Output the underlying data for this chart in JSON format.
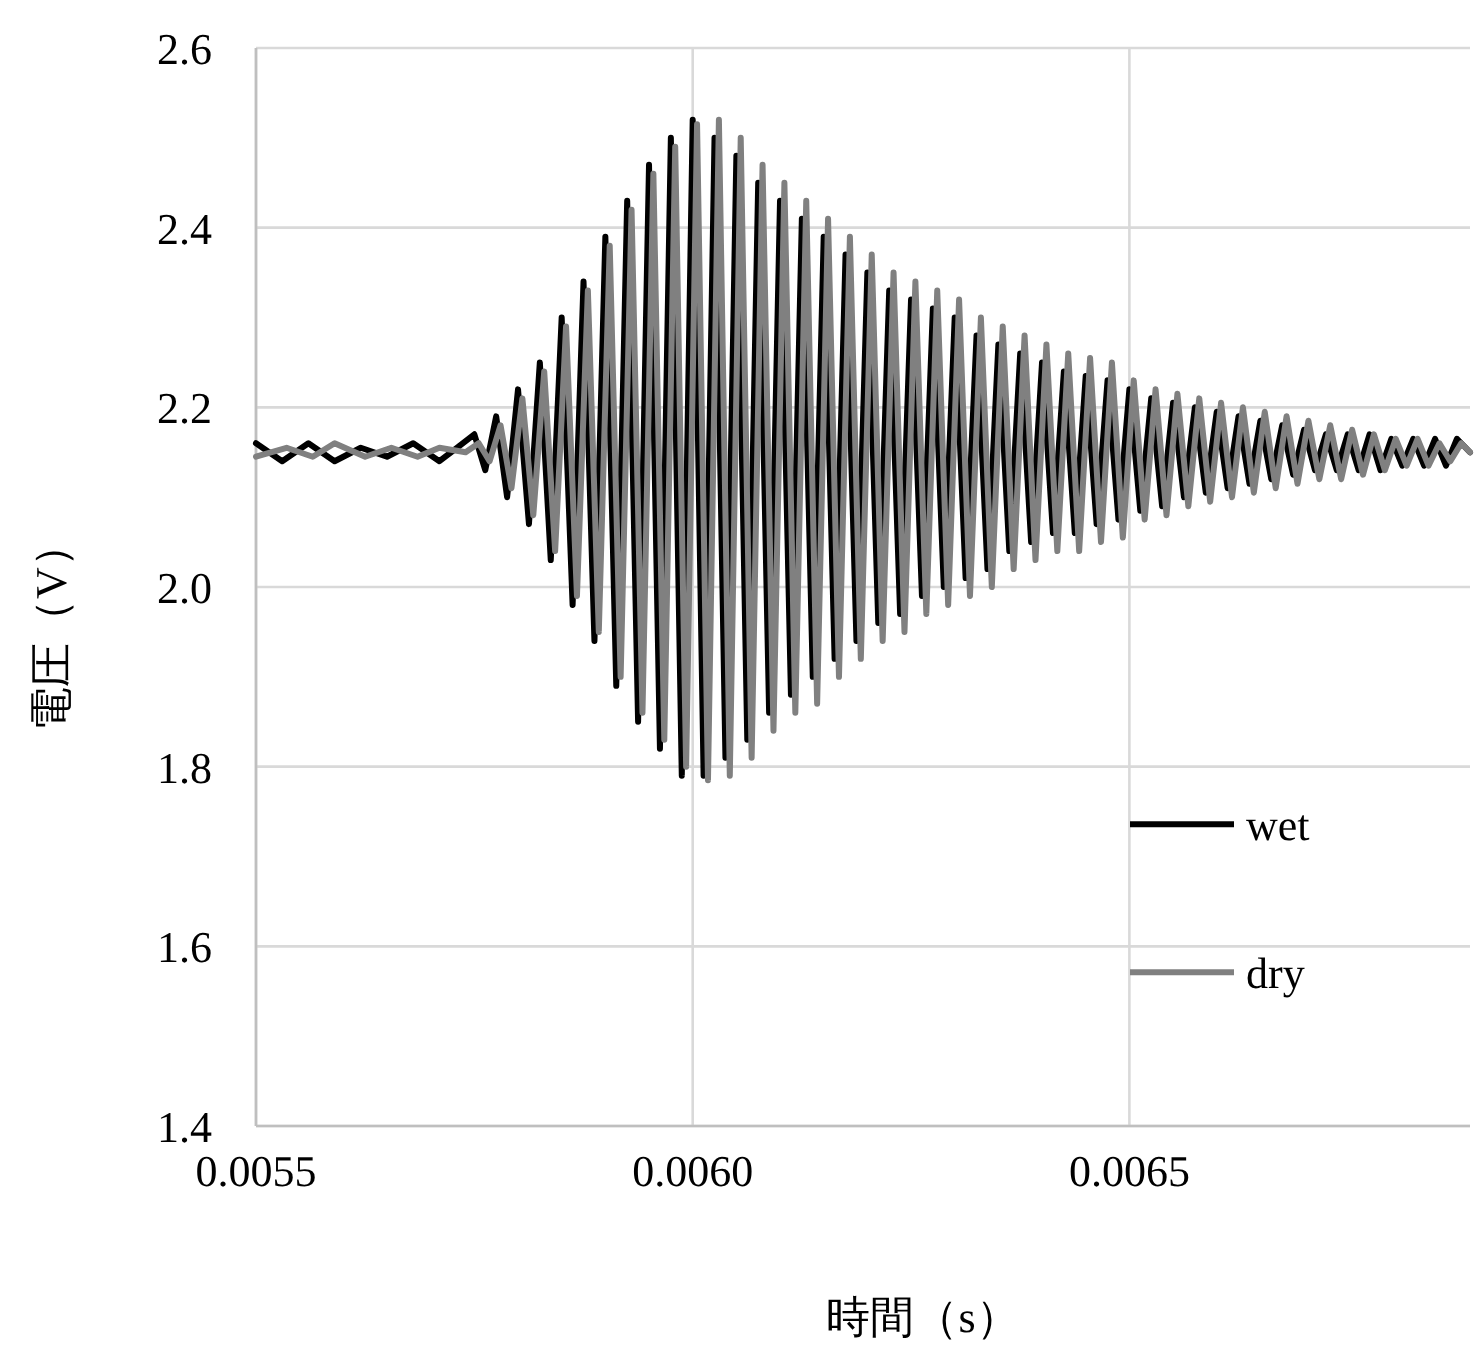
{
  "chart_data": {
    "type": "line",
    "xlabel": "時間（s）",
    "ylabel": "電圧（V）",
    "xlim": [
      0.0055,
      0.00689
    ],
    "ylim": [
      1.4,
      2.6
    ],
    "xticks": [
      {
        "value": 0.0055,
        "label": "0.0055"
      },
      {
        "value": 0.006,
        "label": "0.0060"
      },
      {
        "value": 0.0065,
        "label": "0.0065"
      }
    ],
    "yticks": [
      {
        "value": 1.4,
        "label": "1.4"
      },
      {
        "value": 1.6,
        "label": "1.6"
      },
      {
        "value": 1.8,
        "label": "1.8"
      },
      {
        "value": 2.0,
        "label": "2.0"
      },
      {
        "value": 2.2,
        "label": "2.2"
      },
      {
        "value": 2.4,
        "label": "2.4"
      },
      {
        "value": 2.6,
        "label": "2.6"
      }
    ],
    "grid": true,
    "legend": "right",
    "marker": "none",
    "line_style": "solid",
    "series": [
      {
        "name": "wet",
        "color": "#000000",
        "x": [
          0.0055,
          0.00553,
          0.00556,
          0.00559,
          0.00562,
          0.00565,
          0.00568,
          0.00571,
          0.00573,
          0.00575,
          0.0057625,
          0.005775,
          0.0057875,
          0.0058,
          0.0058125,
          0.005825,
          0.0058375,
          0.00585,
          0.0058625,
          0.005875,
          0.0058875,
          0.0059,
          0.0059125,
          0.005925,
          0.0059375,
          0.00595,
          0.0059625,
          0.005975,
          0.0059875,
          0.006,
          0.0060125,
          0.006025,
          0.0060375,
          0.00605,
          0.0060625,
          0.006075,
          0.0060875,
          0.0061,
          0.0061125,
          0.006125,
          0.0061375,
          0.00615,
          0.0061625,
          0.006175,
          0.0061875,
          0.0062,
          0.0062125,
          0.006225,
          0.0062375,
          0.00625,
          0.0062625,
          0.006275,
          0.0062875,
          0.0063,
          0.0063125,
          0.006325,
          0.0063375,
          0.00635,
          0.0063625,
          0.006375,
          0.0063875,
          0.0064,
          0.0064125,
          0.006425,
          0.0064375,
          0.00645,
          0.0064625,
          0.006475,
          0.0064875,
          0.0065,
          0.0065125,
          0.006525,
          0.0065375,
          0.00655,
          0.0065625,
          0.006575,
          0.0065875,
          0.0066,
          0.0066125,
          0.006625,
          0.0066375,
          0.00665,
          0.0066625,
          0.006675,
          0.0066875,
          0.0067,
          0.0067125,
          0.006725,
          0.0067375,
          0.00675,
          0.0067625,
          0.006775,
          0.0067875,
          0.0068,
          0.0068125,
          0.006825,
          0.0068375,
          0.00685,
          0.0068625,
          0.006875,
          0.00689
        ],
        "values": [
          2.16,
          2.14,
          2.16,
          2.14,
          2.155,
          2.145,
          2.16,
          2.14,
          2.155,
          2.17,
          2.13,
          2.19,
          2.1,
          2.22,
          2.07,
          2.25,
          2.03,
          2.3,
          1.98,
          2.34,
          1.94,
          2.39,
          1.89,
          2.43,
          1.85,
          2.47,
          1.82,
          2.5,
          1.79,
          2.52,
          1.79,
          2.5,
          1.81,
          2.48,
          1.83,
          2.45,
          1.86,
          2.43,
          1.88,
          2.41,
          1.9,
          2.39,
          1.92,
          2.37,
          1.94,
          2.35,
          1.96,
          2.33,
          1.97,
          2.32,
          1.99,
          2.31,
          2.0,
          2.3,
          2.01,
          2.28,
          2.02,
          2.27,
          2.04,
          2.26,
          2.05,
          2.25,
          2.06,
          2.24,
          2.06,
          2.235,
          2.07,
          2.23,
          2.075,
          2.22,
          2.085,
          2.21,
          2.09,
          2.205,
          2.1,
          2.2,
          2.105,
          2.195,
          2.11,
          2.19,
          2.115,
          2.185,
          2.12,
          2.18,
          2.125,
          2.175,
          2.13,
          2.17,
          2.13,
          2.17,
          2.13,
          2.17,
          2.13,
          2.165,
          2.135,
          2.165,
          2.135,
          2.165,
          2.135,
          2.165,
          2.15
        ]
      },
      {
        "name": "dry",
        "color": "#808080",
        "x": [
          0.0055,
          0.005535,
          0.005565,
          0.00559,
          0.005625,
          0.005655,
          0.005685,
          0.00571,
          0.00574,
          0.005755,
          0.0057675,
          0.00578,
          0.0057925,
          0.005805,
          0.0058175,
          0.00583,
          0.0058425,
          0.005855,
          0.0058675,
          0.00588,
          0.0058925,
          0.005905,
          0.0059175,
          0.00593,
          0.0059425,
          0.005955,
          0.0059675,
          0.00598,
          0.0059925,
          0.006005,
          0.0060175,
          0.00603,
          0.0060425,
          0.006055,
          0.0060675,
          0.00608,
          0.0060925,
          0.006105,
          0.0061175,
          0.00613,
          0.0061425,
          0.006155,
          0.0061675,
          0.00618,
          0.0061925,
          0.006205,
          0.0062175,
          0.00623,
          0.0062425,
          0.006255,
          0.0062675,
          0.00628,
          0.0062925,
          0.006305,
          0.0063175,
          0.00633,
          0.0063425,
          0.006355,
          0.0063675,
          0.00638,
          0.0063925,
          0.006405,
          0.0064175,
          0.00643,
          0.0064425,
          0.006455,
          0.0064675,
          0.00648,
          0.0064925,
          0.006505,
          0.0065175,
          0.00653,
          0.0065425,
          0.006555,
          0.0065675,
          0.00658,
          0.0065925,
          0.006605,
          0.0066175,
          0.00663,
          0.0066425,
          0.006655,
          0.0066675,
          0.00668,
          0.0066925,
          0.006705,
          0.0067175,
          0.00673,
          0.0067425,
          0.006755,
          0.0067675,
          0.00678,
          0.0067925,
          0.006805,
          0.0068175,
          0.00683,
          0.0068425,
          0.006855,
          0.0068675,
          0.00688,
          0.00689
        ],
        "values": [
          2.145,
          2.155,
          2.145,
          2.16,
          2.145,
          2.155,
          2.145,
          2.155,
          2.15,
          2.16,
          2.14,
          2.18,
          2.11,
          2.21,
          2.08,
          2.24,
          2.04,
          2.29,
          1.99,
          2.33,
          1.95,
          2.38,
          1.9,
          2.42,
          1.86,
          2.46,
          1.83,
          2.49,
          1.8,
          2.515,
          1.785,
          2.52,
          1.79,
          2.5,
          1.81,
          2.47,
          1.84,
          2.45,
          1.86,
          2.43,
          1.87,
          2.41,
          1.9,
          2.39,
          1.92,
          2.37,
          1.94,
          2.35,
          1.95,
          2.34,
          1.97,
          2.33,
          1.98,
          2.32,
          1.99,
          2.3,
          2.0,
          2.29,
          2.02,
          2.28,
          2.03,
          2.27,
          2.04,
          2.26,
          2.04,
          2.255,
          2.05,
          2.25,
          2.055,
          2.23,
          2.075,
          2.22,
          2.08,
          2.215,
          2.09,
          2.21,
          2.095,
          2.205,
          2.1,
          2.2,
          2.105,
          2.195,
          2.11,
          2.19,
          2.115,
          2.185,
          2.12,
          2.18,
          2.12,
          2.175,
          2.125,
          2.17,
          2.13,
          2.165,
          2.135,
          2.165,
          2.135,
          2.16,
          2.14,
          2.16,
          2.15
        ]
      }
    ]
  }
}
